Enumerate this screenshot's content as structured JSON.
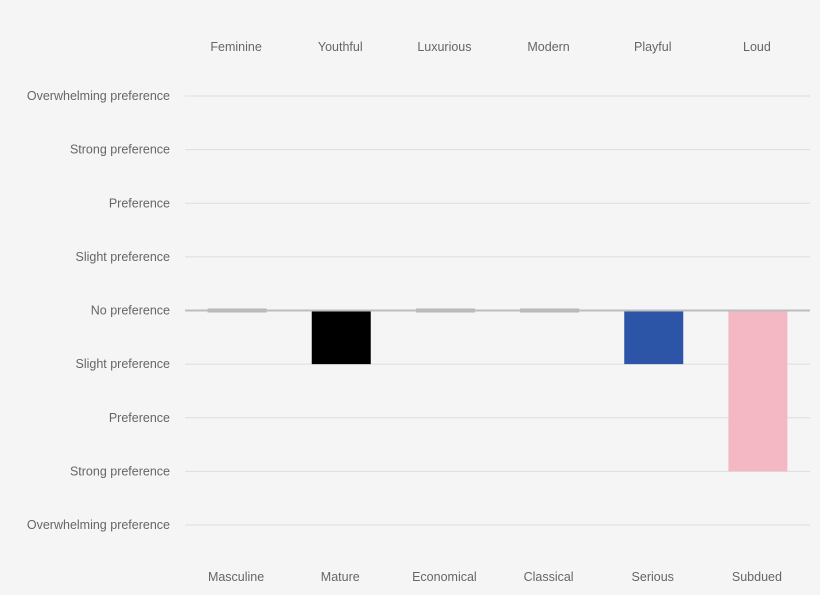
{
  "chart_data": {
    "type": "bar",
    "top_categories": [
      "Feminine",
      "Youthful",
      "Luxurious",
      "Modern",
      "Playful",
      "Loud"
    ],
    "bottom_categories": [
      "Masculine",
      "Mature",
      "Economical",
      "Classical",
      "Serious",
      "Subdued"
    ],
    "y_tick_labels": [
      "Overwhelming preference",
      "Strong preference",
      "Preference",
      "Slight preference",
      "No preference",
      "Slight preference",
      "Preference",
      "Strong preference",
      "Overwhelming preference"
    ],
    "ylim": [
      -4,
      4
    ],
    "values": [
      0,
      -1,
      0,
      0,
      -1,
      -3
    ],
    "colors": [
      "#b5b5b5",
      "#000000",
      "#b5b5b5",
      "#b5b5b5",
      "#2c55a8",
      "#f4b8c5"
    ],
    "grid": true,
    "legend": "none"
  }
}
